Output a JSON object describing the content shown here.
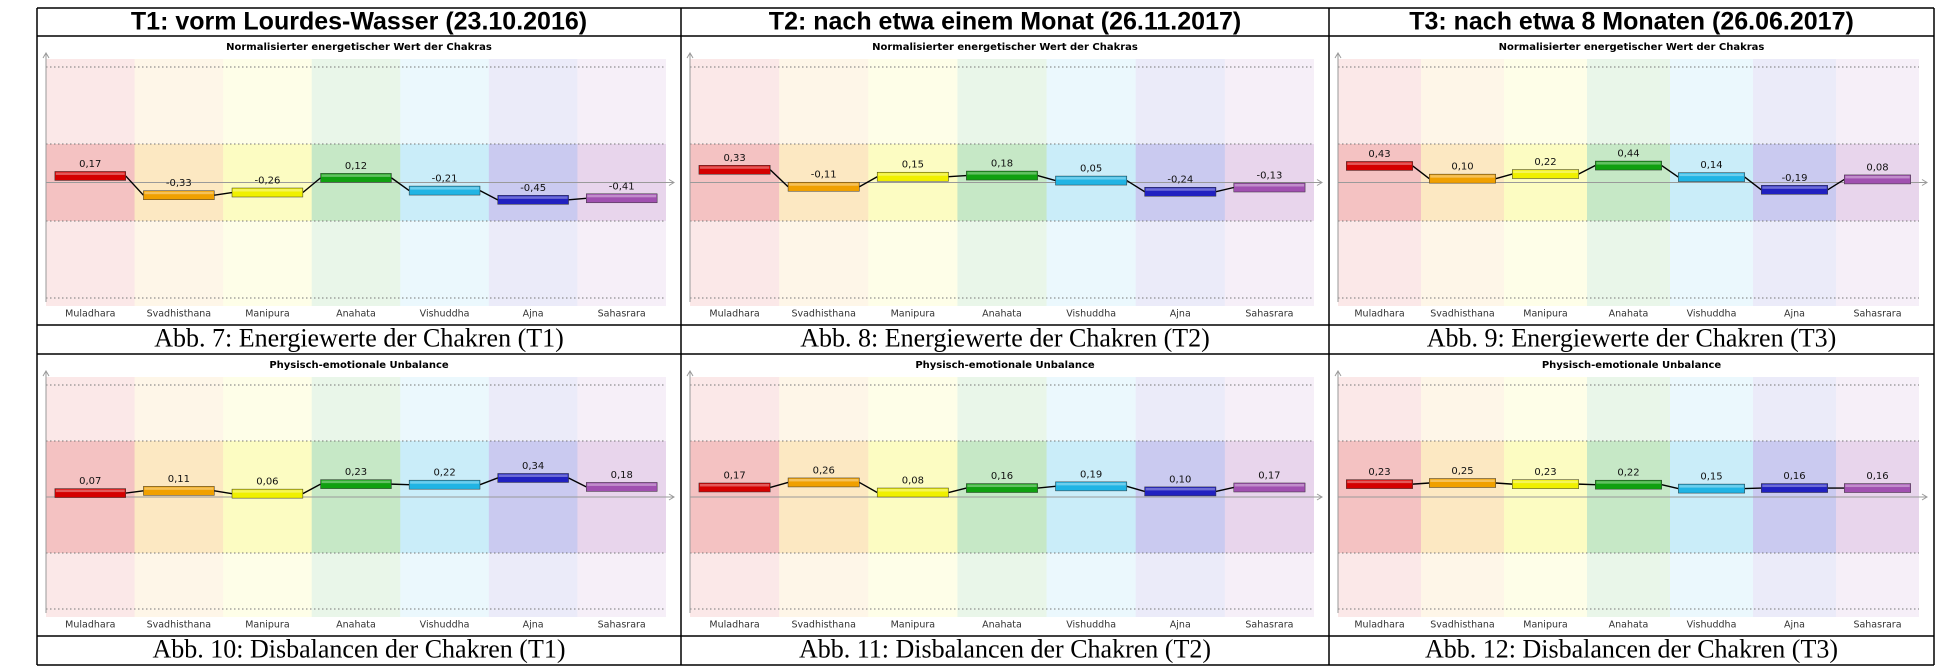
{
  "columns": [
    "T1: vorm Lourdes-Wasser (23.10.2016)",
    "T2: nach etwa einem Monat (26.11.2017)",
    "T3: nach etwa 8 Monaten (26.06.2017)"
  ],
  "chart_data": [
    {
      "type": "level",
      "title": "Normalisierter energetischer Wert der Chakras",
      "caption": "Abb. 7: Energiewerte der Chakren (T1)",
      "categories": [
        "Muladhara",
        "Svadhisthana",
        "Manipura",
        "Anahata",
        "Vishuddha",
        "Ajna",
        "Sahasrara"
      ],
      "values": [
        0.17,
        -0.33,
        -0.26,
        0.12,
        -0.21,
        -0.45,
        -0.41
      ],
      "value_labels": [
        "0,17",
        "-0,33",
        "-0,26",
        "0,12",
        "-0,21",
        "-0,45",
        "-0,41"
      ],
      "colors": [
        "#d40000",
        "#f0a000",
        "#f0f000",
        "#10a010",
        "#20b4e4",
        "#2020c0",
        "#a050b0"
      ],
      "ylim": [
        -3,
        3
      ],
      "yticks": [
        -3,
        -1,
        0,
        1,
        3
      ],
      "grid": true
    },
    {
      "type": "level",
      "title": "Normalisierter energetischer Wert der Chakras",
      "caption": "Abb. 8: Energiewerte der Chakren (T2)",
      "categories": [
        "Muladhara",
        "Svadhisthana",
        "Manipura",
        "Anahata",
        "Vishuddha",
        "Ajna",
        "Sahasrara"
      ],
      "values": [
        0.33,
        -0.11,
        0.15,
        0.18,
        0.05,
        -0.24,
        -0.13
      ],
      "value_labels": [
        "0,33",
        "-0,11",
        "0,15",
        "0,18",
        "0,05",
        "-0,24",
        "-0,13"
      ],
      "colors": [
        "#d40000",
        "#f0a000",
        "#f0f000",
        "#10a010",
        "#20b4e4",
        "#2020c0",
        "#a050b0"
      ],
      "ylim": [
        -3,
        3
      ],
      "yticks": [
        -3,
        -1,
        0,
        1,
        3
      ],
      "grid": true
    },
    {
      "type": "level",
      "title": "Normalisierter energetischer Wert der Chakras",
      "caption": "Abb. 9: Energiewerte der Chakren (T3)",
      "categories": [
        "Muladhara",
        "Svadhisthana",
        "Manipura",
        "Anahata",
        "Vishuddha",
        "Ajna",
        "Sahasrara"
      ],
      "values": [
        0.43,
        0.1,
        0.22,
        0.44,
        0.14,
        -0.19,
        0.08
      ],
      "value_labels": [
        "0,43",
        "0,10",
        "0,22",
        "0,44",
        "0,14",
        "-0,19",
        "0,08"
      ],
      "colors": [
        "#d40000",
        "#f0a000",
        "#f0f000",
        "#10a010",
        "#20b4e4",
        "#2020c0",
        "#a050b0"
      ],
      "ylim": [
        -3,
        3
      ],
      "yticks": [
        -3,
        -1,
        0,
        1,
        3
      ],
      "grid": true
    },
    {
      "type": "level",
      "title": "Physisch-emotionale Unbalance",
      "caption": "Abb. 10: Disbalancen der Chakren (T1)",
      "categories": [
        "Muladhara",
        "Svadhisthana",
        "Manipura",
        "Anahata",
        "Vishuddha",
        "Ajna",
        "Sahasrara"
      ],
      "values": [
        0.07,
        0.11,
        0.06,
        0.23,
        0.22,
        0.34,
        0.18
      ],
      "value_labels": [
        "0,07",
        "0,11",
        "0,06",
        "0,23",
        "0,22",
        "0,34",
        "0,18"
      ],
      "colors": [
        "#d40000",
        "#f0a000",
        "#f0f000",
        "#10a010",
        "#20b4e4",
        "#2020c0",
        "#a050b0"
      ],
      "ylim": [
        -2,
        2
      ],
      "yticks": [
        -2,
        -1,
        0,
        1,
        2
      ],
      "grid": true
    },
    {
      "type": "level",
      "title": "Physisch-emotionale Unbalance",
      "caption": "Abb. 11: Disbalancen der Chakren (T2)",
      "categories": [
        "Muladhara",
        "Svadhisthana",
        "Manipura",
        "Anahata",
        "Vishuddha",
        "Ajna",
        "Sahasrara"
      ],
      "values": [
        0.17,
        0.26,
        0.08,
        0.16,
        0.19,
        0.1,
        0.17
      ],
      "value_labels": [
        "0,17",
        "0,26",
        "0,08",
        "0,16",
        "0,19",
        "0,10",
        "0,17"
      ],
      "colors": [
        "#d40000",
        "#f0a000",
        "#f0f000",
        "#10a010",
        "#20b4e4",
        "#2020c0",
        "#a050b0"
      ],
      "ylim": [
        -2,
        2
      ],
      "yticks": [
        -2,
        -1,
        0,
        1,
        2
      ],
      "grid": true
    },
    {
      "type": "level",
      "title": "Physisch-emotionale Unbalance",
      "caption": "Abb. 12: Disbalancen der Chakren (T3)",
      "categories": [
        "Muladhara",
        "Svadhisthana",
        "Manipura",
        "Anahata",
        "Vishuddha",
        "Ajna",
        "Sahasrara"
      ],
      "values": [
        0.23,
        0.25,
        0.23,
        0.22,
        0.15,
        0.16,
        0.16
      ],
      "value_labels": [
        "0,23",
        "0,25",
        "0,23",
        "0,22",
        "0,15",
        "0,16",
        "0,16"
      ],
      "colors": [
        "#d40000",
        "#f0a000",
        "#f0f000",
        "#10a010",
        "#20b4e4",
        "#2020c0",
        "#a050b0"
      ],
      "ylim": [
        -2,
        2
      ],
      "yticks": [
        -2,
        -1,
        0,
        1,
        2
      ],
      "grid": true
    }
  ]
}
